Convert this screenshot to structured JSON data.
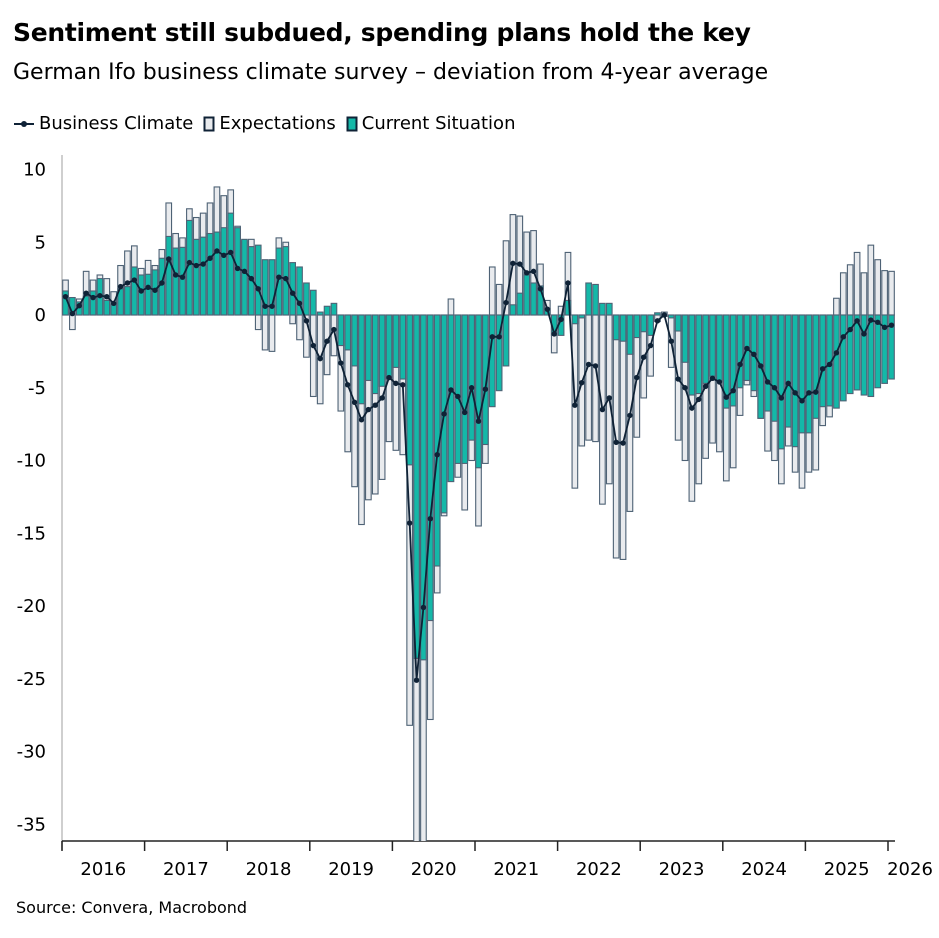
{
  "header": {
    "title": "Sentiment still subdued, spending plans hold the key",
    "subtitle": "German Ifo business climate survey – deviation from 4-year average"
  },
  "footer": {
    "source": "Source: Convera, Macrobond"
  },
  "colors": {
    "line": "#0f2236",
    "current": "#14b8a8",
    "expectations": "#e9ebee",
    "outline": "#4e6275",
    "axis": "#cfcfcf"
  },
  "chart_data": {
    "type": "bar",
    "title": "Sentiment still subdued, spending plans hold the key",
    "subtitle": "German Ifo business climate survey – deviation from 4-year average",
    "xlabel": "",
    "ylabel": "",
    "ylim": [
      -36,
      10.5
    ],
    "yticks": [
      "10",
      "5",
      "0",
      "-5",
      "-10",
      "-15",
      "-20",
      "-25",
      "-30",
      "-35"
    ],
    "ytick_values": [
      10,
      5,
      0,
      -5,
      -10,
      -15,
      -20,
      -25,
      -30,
      -35
    ],
    "xticks": [
      "2016",
      "2017",
      "2018",
      "2019",
      "2020",
      "2021",
      "2022",
      "2023",
      "2024",
      "2025",
      "2026"
    ],
    "x_start": "2016-01",
    "x_end": "2026-01",
    "frequency": "monthly",
    "legend": {
      "placement": "top-left",
      "entries": [
        "Business Climate",
        "Expectations",
        "Current Situation"
      ]
    },
    "series": [
      {
        "name": "Business Climate",
        "type": "line",
        "values": [
          1.26,
          0.1,
          0.64,
          1.5,
          1.2,
          1.33,
          1.26,
          0.8,
          1.95,
          2.2,
          2.4,
          1.65,
          1.9,
          1.7,
          2.2,
          3.85,
          2.75,
          2.6,
          3.6,
          3.4,
          3.5,
          3.9,
          4.4,
          4.1,
          4.3,
          3.2,
          3.0,
          2.5,
          1.8,
          0.6,
          0.6,
          2.6,
          2.5,
          1.5,
          0.8,
          -0.4,
          -2.1,
          -3.0,
          -1.8,
          -1.0,
          -3.3,
          -4.8,
          -6.0,
          -7.2,
          -6.5,
          -6.2,
          -5.7,
          -4.3,
          -4.7,
          -4.8,
          -14.3,
          -25.1,
          -20.1,
          -14.0,
          -9.6,
          -6.8,
          -5.15,
          -5.6,
          -6.7,
          -5.0,
          -7.3,
          -5.1,
          -1.5,
          -1.5,
          0.85,
          3.55,
          3.5,
          2.9,
          3.0,
          1.8,
          0.4,
          -1.3,
          -0.3,
          2.2,
          -6.2,
          -4.65,
          -3.4,
          -3.5,
          -6.5,
          -5.7,
          -8.75,
          -8.8,
          -6.9,
          -4.3,
          -2.9,
          -2.1,
          -0.4,
          0.0,
          -1.8,
          -4.4,
          -5.0,
          -6.4,
          -5.8,
          -4.9,
          -4.35,
          -4.6,
          -5.65,
          -5.2,
          -3.4,
          -2.3,
          -2.7,
          -3.5,
          -4.6,
          -5.0,
          -5.7,
          -4.7,
          -5.35,
          -5.9,
          -5.35,
          -5.3,
          -3.7,
          -3.4,
          -2.6,
          -1.5,
          -1.0,
          -0.4,
          -1.3,
          -0.35,
          -0.5,
          -0.85,
          -0.7
        ]
      },
      {
        "name": "Expectations",
        "type": "bar",
        "values": [
          2.4,
          -1.0,
          1.1,
          3.0,
          2.4,
          2.75,
          2.5,
          1.6,
          3.4,
          4.4,
          4.75,
          3.2,
          3.75,
          3.4,
          4.5,
          7.7,
          5.6,
          5.3,
          7.3,
          6.7,
          7.0,
          7.7,
          8.8,
          8.2,
          8.6,
          6.1,
          5.1,
          5.2,
          -1.0,
          -2.4,
          -2.5,
          5.3,
          5.0,
          -0.6,
          -1.7,
          -2.9,
          -5.6,
          -6.1,
          -4.1,
          -2.8,
          -6.6,
          -9.4,
          -11.8,
          -14.4,
          -12.7,
          -12.3,
          -11.3,
          -8.7,
          -9.3,
          -9.6,
          -28.2,
          -38.0,
          -37.0,
          -27.8,
          -19.1,
          -13.8,
          1.1,
          -11.15,
          -13.4,
          -10.0,
          -14.5,
          -10.2,
          3.3,
          2.1,
          5.1,
          6.9,
          6.8,
          5.7,
          5.8,
          3.5,
          1.0,
          -2.6,
          0.6,
          4.3,
          -11.9,
          -9.0,
          -8.6,
          -8.7,
          -13.0,
          -11.6,
          -16.7,
          -16.8,
          -13.5,
          -8.4,
          -5.7,
          -4.2,
          -0.45,
          0.2,
          -3.6,
          -8.6,
          -10.0,
          -12.8,
          -11.6,
          -9.85,
          -8.8,
          -9.4,
          -11.4,
          -10.5,
          -6.9,
          -4.8,
          -5.6,
          -7.1,
          -9.35,
          -10.0,
          -11.6,
          -9.0,
          -10.8,
          -11.9,
          -10.8,
          -10.65,
          -7.6,
          -7.0,
          1.15,
          2.9,
          3.45,
          4.3,
          2.9,
          4.8,
          3.8,
          3.05,
          3.0
        ]
      },
      {
        "name": "Current Situation",
        "type": "bar",
        "values": [
          1.65,
          1.2,
          0.9,
          1.3,
          1.65,
          2.5,
          1.0,
          0.7,
          1.8,
          1.95,
          3.3,
          2.75,
          2.8,
          3.1,
          3.9,
          5.4,
          4.6,
          4.65,
          6.5,
          5.2,
          5.35,
          5.6,
          5.7,
          6.0,
          7.0,
          6.0,
          5.2,
          4.7,
          4.8,
          3.8,
          3.8,
          4.6,
          4.7,
          3.6,
          3.3,
          2.2,
          1.7,
          0.2,
          0.6,
          0.8,
          -2.1,
          -2.4,
          -3.5,
          -6.1,
          -4.5,
          -5.4,
          -4.9,
          -4.4,
          -3.6,
          -4.4,
          -10.3,
          -23.6,
          -23.7,
          -21.0,
          -17.25,
          -13.6,
          -11.45,
          -10.2,
          -10.2,
          -8.6,
          -10.5,
          -8.9,
          -6.3,
          -5.2,
          -3.5,
          0.7,
          1.5,
          2.75,
          2.2,
          2.0,
          0.45,
          -1.4,
          -1.4,
          1.0,
          -0.6,
          -0.2,
          2.2,
          2.1,
          0.8,
          0.8,
          -1.7,
          -1.8,
          -2.7,
          -1.55,
          -1.15,
          -1.4,
          0.15,
          -0.1,
          -0.2,
          -1.1,
          -3.25,
          -5.5,
          -5.4,
          -4.7,
          -4.2,
          -4.6,
          -6.4,
          -6.25,
          -5.0,
          -4.5,
          -5.2,
          -7.1,
          -6.6,
          -7.3,
          -9.2,
          -7.7,
          -9.05,
          -8.1,
          -8.1,
          -7.1,
          -6.3,
          -6.25,
          -6.4,
          -5.9,
          -5.4,
          -5.15,
          -5.5,
          -5.6,
          -5.0,
          -4.7,
          -4.4
        ]
      }
    ]
  }
}
